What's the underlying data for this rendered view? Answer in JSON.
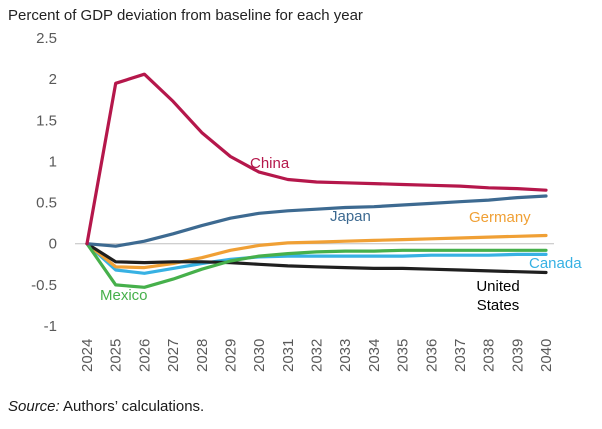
{
  "chart_data": {
    "type": "line",
    "title": "Percent of GDP deviation from baseline for each year",
    "xlabel": "",
    "ylabel": "",
    "x": [
      "2024",
      "2025",
      "2026",
      "2027",
      "2028",
      "2029",
      "2030",
      "2031",
      "2032",
      "2033",
      "2034",
      "2035",
      "2036",
      "2037",
      "2038",
      "2039",
      "2040"
    ],
    "y_ticks": [
      "2.5",
      "2",
      "1.5",
      "1",
      "0.5",
      "0",
      "-0.5",
      "-1"
    ],
    "ylim": [
      -1,
      2.5
    ],
    "grid": false,
    "legend": "inline labels",
    "series": [
      {
        "name": "China",
        "color": "#b5174b",
        "values": [
          0,
          1.95,
          2.06,
          1.73,
          1.35,
          1.06,
          0.87,
          0.78,
          0.75,
          0.74,
          0.73,
          0.72,
          0.71,
          0.7,
          0.68,
          0.67,
          0.65
        ]
      },
      {
        "name": "Japan",
        "color": "#3d6a91",
        "values": [
          0,
          -0.03,
          0.03,
          0.12,
          0.22,
          0.31,
          0.37,
          0.4,
          0.42,
          0.44,
          0.45,
          0.47,
          0.49,
          0.51,
          0.53,
          0.56,
          0.58
        ]
      },
      {
        "name": "Germany",
        "color": "#f0a035",
        "values": [
          0,
          -0.28,
          -0.29,
          -0.24,
          -0.17,
          -0.08,
          -0.02,
          0.01,
          0.02,
          0.03,
          0.04,
          0.05,
          0.06,
          0.07,
          0.08,
          0.09,
          0.1
        ]
      },
      {
        "name": "Mexico",
        "color": "#46b04b",
        "values": [
          0,
          -0.5,
          -0.53,
          -0.43,
          -0.31,
          -0.21,
          -0.15,
          -0.12,
          -0.1,
          -0.09,
          -0.09,
          -0.08,
          -0.08,
          -0.08,
          -0.08,
          -0.08,
          -0.08
        ]
      },
      {
        "name": "Canada",
        "color": "#37b1e3",
        "values": [
          0,
          -0.32,
          -0.36,
          -0.3,
          -0.24,
          -0.19,
          -0.16,
          -0.15,
          -0.15,
          -0.15,
          -0.15,
          -0.15,
          -0.14,
          -0.14,
          -0.14,
          -0.13,
          -0.13
        ]
      },
      {
        "name": "United States",
        "label_lines": [
          "United",
          "States"
        ],
        "color": "#1f1f1f",
        "values": [
          0,
          -0.22,
          -0.23,
          -0.22,
          -0.22,
          -0.23,
          -0.25,
          -0.27,
          -0.28,
          -0.29,
          -0.3,
          -0.3,
          -0.31,
          -0.32,
          -0.33,
          -0.34,
          -0.35
        ]
      }
    ]
  },
  "note": {
    "source_label": "Source:",
    "source_text": " Authors’ calculations."
  }
}
